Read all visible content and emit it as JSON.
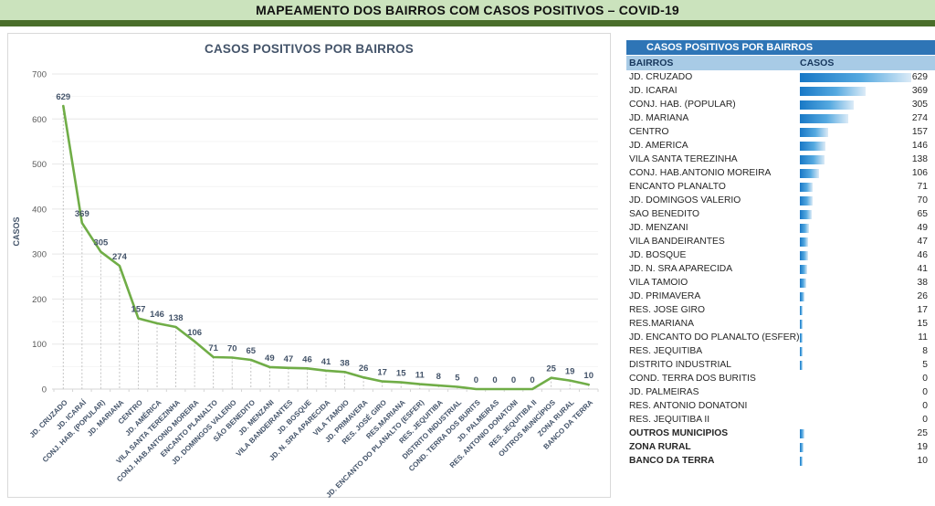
{
  "header": {
    "title": "MAPEAMENTO DOS BAIRROS COM CASOS POSITIVOS – COVID-19",
    "band_color": "#cbe3bd",
    "bar_color": "#4a6e2a"
  },
  "chart_data": {
    "type": "line",
    "title": "CASOS POSITIVOS POR BAIRROS",
    "xlabel": "",
    "ylabel": "CASOS",
    "ylim": [
      0,
      700
    ],
    "y_tick_interval": 100,
    "minor_gridline_interval": 50,
    "grid": true,
    "legend": false,
    "line_color": "#70ad47",
    "label_color": "#44546a",
    "axis_text_color": "#595959",
    "drop_lines": "dashed",
    "categories": [
      "JD. CRUZADO",
      "JD. ICARAÍ",
      "CONJ. HAB. (POPULAR)",
      "JD. MARIANA",
      "CENTRO",
      "JD. AMÉRICA",
      "VILA SANTA TEREZINHA",
      "CONJ. HAB.ANTONIO MOREIRA",
      "ENCANTO PLANALTO",
      "JD. DOMINGOS VALERIO",
      "SÃO BENEDITO",
      "JD. MENZANI",
      "VILA BANDEIRANTES",
      "JD. BOSQUE",
      "JD. N. SRA APARECIDA",
      "VILA TAMOIO",
      "JD. PRIMAVERA",
      "RES. JOSÉ GIRO",
      "RES.MARIANA",
      "JD. ENCANTO DO PLANALTO (ESFER)",
      "RES. JEQUITIBA",
      "DISTRITO INDUSTRIAL",
      "COND. TERRA DOS BURITS",
      "JD. PALMEIRAS",
      "RES. ANTONIO DONATONI",
      "RES. JEQUITIBA II",
      "OUTROS MUNICÍPIOS",
      "ZONA RURAL",
      "BANCO DA TERRA"
    ],
    "values": [
      629,
      369,
      305,
      274,
      157,
      146,
      138,
      106,
      71,
      70,
      65,
      49,
      47,
      46,
      41,
      38,
      26,
      17,
      15,
      11,
      8,
      5,
      0,
      0,
      0,
      0,
      25,
      19,
      10
    ]
  },
  "table": {
    "title": "CASOS POSITIVOS POR BAIRROS",
    "columns": [
      "BAIRROS",
      "CASOS"
    ],
    "title_bg": "#2e75b6",
    "header_bg": "#a8cbe6",
    "bar_color_start": "#1878c6",
    "bar_color_end": "#dcebf7",
    "max_value": 629,
    "rows": [
      {
        "bairro": "JD. CRUZADO",
        "casos": 629,
        "bold": false
      },
      {
        "bairro": "JD. ICARAÍ",
        "casos": 369,
        "bold": false
      },
      {
        "bairro": "CONJ. HAB. (POPULAR)",
        "casos": 305,
        "bold": false
      },
      {
        "bairro": "JD. MARIANA",
        "casos": 274,
        "bold": false
      },
      {
        "bairro": "CENTRO",
        "casos": 157,
        "bold": false
      },
      {
        "bairro": "JD. AMÉRICA",
        "casos": 146,
        "bold": false
      },
      {
        "bairro": "VILA SANTA TEREZINHA",
        "casos": 138,
        "bold": false
      },
      {
        "bairro": "CONJ. HAB.ANTONIO MOREIRA",
        "casos": 106,
        "bold": false
      },
      {
        "bairro": "ENCANTO PLANALTO",
        "casos": 71,
        "bold": false
      },
      {
        "bairro": "JD. DOMINGOS VALERIO",
        "casos": 70,
        "bold": false
      },
      {
        "bairro": "SÃO BENEDITO",
        "casos": 65,
        "bold": false
      },
      {
        "bairro": "JD. MENZANI",
        "casos": 49,
        "bold": false
      },
      {
        "bairro": "VILA BANDEIRANTES",
        "casos": 47,
        "bold": false
      },
      {
        "bairro": "JD. BOSQUE",
        "casos": 46,
        "bold": false
      },
      {
        "bairro": "JD. N. SRA APARECIDA",
        "casos": 41,
        "bold": false
      },
      {
        "bairro": "VILA TAMOIO",
        "casos": 38,
        "bold": false
      },
      {
        "bairro": "JD. PRIMAVERA",
        "casos": 26,
        "bold": false
      },
      {
        "bairro": "RES. JOSÉ GIRO",
        "casos": 17,
        "bold": false
      },
      {
        "bairro": "RES.MARIANA",
        "casos": 15,
        "bold": false
      },
      {
        "bairro": "JD. ENCANTO DO PLANALTO (ESFER)",
        "casos": 11,
        "bold": false
      },
      {
        "bairro": "RES. JEQUITIBA",
        "casos": 8,
        "bold": false
      },
      {
        "bairro": "DISTRITO INDUSTRIAL",
        "casos": 5,
        "bold": false
      },
      {
        "bairro": "COND. TERRA DOS BURITIS",
        "casos": 0,
        "bold": false
      },
      {
        "bairro": "JD. PALMEIRAS",
        "casos": 0,
        "bold": false
      },
      {
        "bairro": "RES. ANTONIO DONATONI",
        "casos": 0,
        "bold": false
      },
      {
        "bairro": "RES. JEQUITIBA II",
        "casos": 0,
        "bold": false
      },
      {
        "bairro": "OUTROS MUNICÍPIOS",
        "casos": 25,
        "bold": true
      },
      {
        "bairro": "ZONA RURAL",
        "casos": 19,
        "bold": true
      },
      {
        "bairro": "BANCO DA TERRA",
        "casos": 10,
        "bold": true
      }
    ]
  }
}
